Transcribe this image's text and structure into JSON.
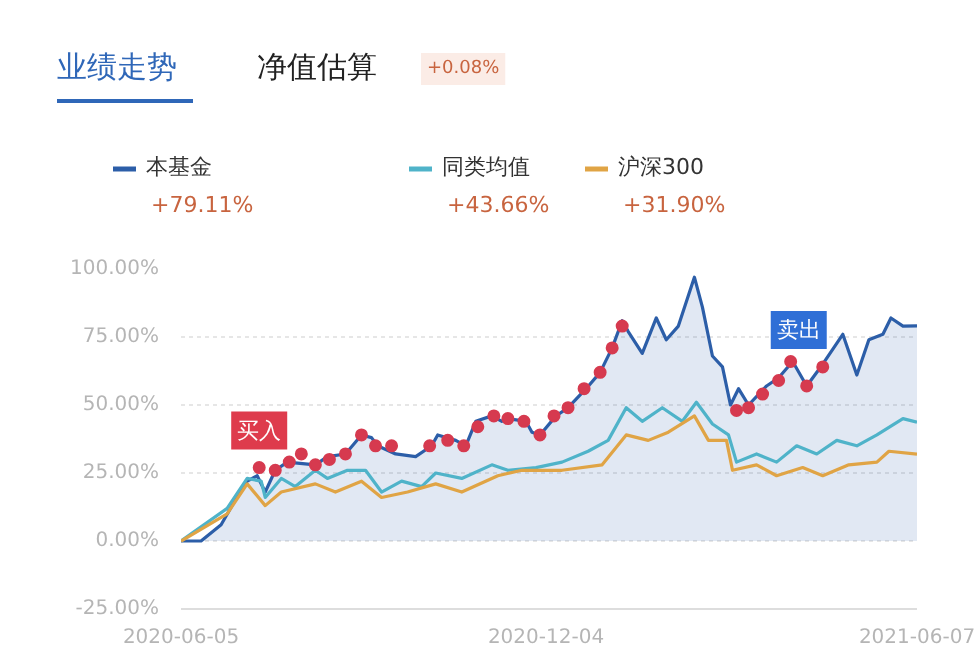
{
  "chart_data": {
    "type": "line",
    "title": "业绩走势",
    "subtitle": "净值估算",
    "xlim": [
      "2020-06-05",
      "2021-06-07"
    ],
    "xticks": [
      "2020-06-05",
      "2020-12-04",
      "2021-06-07"
    ],
    "ylim": [
      -25,
      100
    ],
    "yticks": [
      {
        "value": -25,
        "label": "-25.00%"
      },
      {
        "value": 0,
        "label": "0.00%"
      },
      {
        "value": 25,
        "label": "25.00%"
      },
      {
        "value": 50,
        "label": "50.00%"
      },
      {
        "value": 75,
        "label": "75.00%"
      },
      {
        "value": 100,
        "label": "100.00%"
      }
    ],
    "grid": "y",
    "legend": "top",
    "annotations": [
      "+0.08%",
      "+79.11%",
      "+43.66%",
      "+31.90%",
      {
        "text": "买入",
        "x": "2020-07-14",
        "y": 27
      },
      {
        "text": "卖出",
        "x": "2021-04-21",
        "y": 64
      }
    ],
    "series": [
      {
        "name": "本基金",
        "type": "area",
        "color": "#2c5ea8",
        "x": [
          "2020-06-05",
          "2020-06-15",
          "2020-06-25",
          "2020-07-02",
          "2020-07-08",
          "2020-07-13",
          "2020-07-17",
          "2020-07-22",
          "2020-07-28",
          "2020-08-11",
          "2020-08-17",
          "2020-08-26",
          "2020-09-03",
          "2020-09-08",
          "2020-09-11",
          "2020-09-20",
          "2020-09-30",
          "2020-10-08",
          "2020-10-11",
          "2020-10-20",
          "2020-10-25",
          "2020-10-30",
          "2020-11-07",
          "2020-11-12",
          "2020-11-15",
          "2020-11-24",
          "2020-11-27",
          "2020-12-01",
          "2020-12-09",
          "2020-12-15",
          "2020-12-24",
          "2020-12-31",
          "2021-01-06",
          "2021-01-11",
          "2021-01-14",
          "2021-01-21",
          "2021-01-28",
          "2021-02-02",
          "2021-02-08",
          "2021-02-16",
          "2021-02-20",
          "2021-02-25",
          "2021-03-02",
          "2021-03-06",
          "2021-03-10",
          "2021-03-15",
          "2021-03-24",
          "2021-03-30",
          "2021-04-06",
          "2021-04-13",
          "2021-04-21",
          "2021-05-01",
          "2021-05-08",
          "2021-05-14",
          "2021-05-21",
          "2021-05-25",
          "2021-05-31",
          "2021-06-07"
        ],
        "values": [
          0,
          0,
          6,
          15,
          22,
          24,
          18,
          26,
          29,
          28,
          31,
          32,
          39,
          38,
          35,
          32,
          31,
          35,
          39,
          37,
          35,
          44,
          46,
          44,
          45,
          44,
          40,
          39,
          46,
          49,
          56,
          62,
          71,
          81,
          77,
          69,
          82,
          74,
          79,
          97,
          86,
          68,
          64,
          50,
          56,
          50,
          57,
          60,
          66,
          57,
          65,
          76,
          61,
          74,
          76,
          82,
          79,
          79.11
        ]
      },
      {
        "name": "同类均值",
        "color": "#4fb3c9",
        "x": [
          "2020-06-05",
          "2020-06-28",
          "2020-07-08",
          "2020-07-15",
          "2020-07-17",
          "2020-07-25",
          "2020-08-01",
          "2020-08-11",
          "2020-08-17",
          "2020-08-27",
          "2020-09-05",
          "2020-09-13",
          "2020-09-23",
          "2020-10-03",
          "2020-10-10",
          "2020-10-23",
          "2020-11-07",
          "2020-11-15",
          "2020-11-29",
          "2020-12-12",
          "2020-12-25",
          "2021-01-04",
          "2021-01-13",
          "2021-01-21",
          "2021-01-31",
          "2021-02-10",
          "2021-02-17",
          "2021-02-25",
          "2021-03-05",
          "2021-03-09",
          "2021-03-19",
          "2021-03-29",
          "2021-04-08",
          "2021-04-18",
          "2021-04-28",
          "2021-05-08",
          "2021-05-18",
          "2021-05-31",
          "2021-06-07"
        ],
        "values": [
          0,
          12,
          23,
          22,
          16,
          23,
          20,
          26,
          23,
          26,
          26,
          18,
          22,
          20,
          25,
          23,
          28,
          26,
          27,
          29,
          33,
          37,
          49,
          44,
          49,
          44,
          51,
          43,
          39,
          29,
          32,
          29,
          35,
          32,
          37,
          35,
          39,
          45,
          43.66
        ]
      },
      {
        "name": "沪深300",
        "color": "#e0a445",
        "x": [
          "2020-06-05",
          "2020-06-28",
          "2020-07-08",
          "2020-07-17",
          "2020-07-25",
          "2020-08-11",
          "2020-08-21",
          "2020-09-03",
          "2020-09-13",
          "2020-09-26",
          "2020-10-10",
          "2020-10-23",
          "2020-11-10",
          "2020-11-22",
          "2020-12-12",
          "2021-01-01",
          "2021-01-13",
          "2021-01-24",
          "2021-02-03",
          "2021-02-16",
          "2021-02-23",
          "2021-03-04",
          "2021-03-07",
          "2021-03-19",
          "2021-03-29",
          "2021-04-11",
          "2021-04-21",
          "2021-05-04",
          "2021-05-18",
          "2021-05-24",
          "2021-06-07"
        ],
        "values": [
          0,
          10,
          21,
          13,
          18,
          21,
          18,
          22,
          16,
          18,
          21,
          18,
          24,
          26,
          26,
          28,
          39,
          37,
          40,
          46,
          37,
          37,
          26,
          28,
          24,
          27,
          24,
          28,
          29,
          33,
          31.9
        ]
      },
      {
        "type": "scatter",
        "color": "#d63a4f",
        "marker": "circle",
        "x": [
          "2020-07-14",
          "2020-07-22",
          "2020-07-29",
          "2020-08-04",
          "2020-08-11",
          "2020-08-18",
          "2020-08-26",
          "2020-09-03",
          "2020-09-10",
          "2020-09-18",
          "2020-10-07",
          "2020-10-16",
          "2020-10-24",
          "2020-10-31",
          "2020-11-08",
          "2020-11-15",
          "2020-11-23",
          "2020-12-01",
          "2020-12-08",
          "2020-12-15",
          "2020-12-23",
          "2020-12-31",
          "2021-01-06",
          "2021-01-11",
          "2021-03-09",
          "2021-03-15",
          "2021-03-22",
          "2021-03-30",
          "2021-04-05",
          "2021-04-13",
          "2021-04-21"
        ],
        "values": [
          27,
          26,
          29,
          32,
          28,
          30,
          32,
          39,
          35,
          35,
          35,
          37,
          35,
          42,
          46,
          45,
          44,
          39,
          46,
          49,
          56,
          62,
          71,
          79,
          48,
          49,
          54,
          59,
          66,
          57,
          64
        ]
      }
    ]
  }
}
